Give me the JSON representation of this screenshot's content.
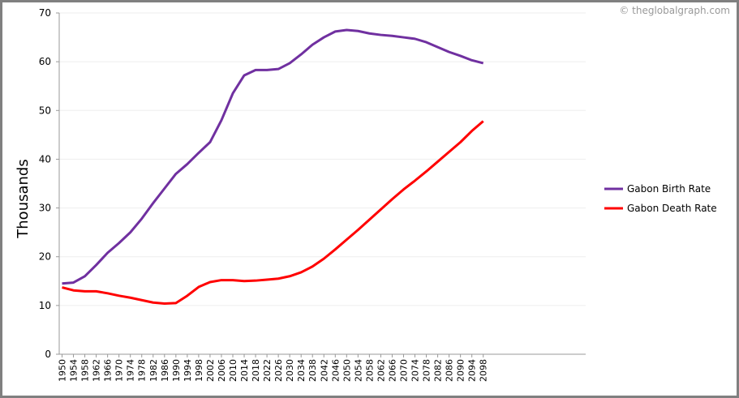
{
  "chart_data": {
    "type": "line",
    "y_label": "Thousands",
    "credit": "© theglobalgraph.com",
    "x": [
      1950,
      1954,
      1958,
      1962,
      1966,
      1970,
      1974,
      1978,
      1982,
      1986,
      1990,
      1994,
      1998,
      2002,
      2006,
      2010,
      2014,
      2018,
      2022,
      2026,
      2030,
      2034,
      2038,
      2042,
      2046,
      2050,
      2054,
      2058,
      2062,
      2066,
      2070,
      2074,
      2078,
      2082,
      2086,
      2090,
      2094,
      2098
    ],
    "series": [
      {
        "name": "Gabon Birth Rate",
        "color": "#7030a0",
        "values": [
          14.5,
          14.7,
          16,
          18.3,
          20.8,
          22.8,
          25,
          27.8,
          31,
          34,
          37,
          39,
          41.3,
          43.5,
          48,
          53.5,
          57.2,
          58.3,
          58.3,
          58.5,
          59.7,
          61.5,
          63.5,
          65,
          66.2,
          66.5,
          66.3,
          65.8,
          65.5,
          65.3,
          65,
          64.7,
          64,
          63,
          62,
          61.2,
          60.3,
          59.7
        ]
      },
      {
        "name": "Gabon Death Rate",
        "color": "#ff0000",
        "values": [
          13.7,
          13.1,
          12.9,
          12.9,
          12.5,
          12,
          11.6,
          11.1,
          10.6,
          10.4,
          10.5,
          12,
          13.8,
          14.8,
          15.2,
          15.2,
          15,
          15.1,
          15.3,
          15.5,
          16,
          16.8,
          18,
          19.6,
          21.5,
          23.5,
          25.5,
          27.6,
          29.7,
          31.8,
          33.8,
          35.6,
          37.5,
          39.5,
          41.5,
          43.5,
          45.8,
          47.8
        ]
      }
    ],
    "xlim": [
      1949,
      2134
    ],
    "xticks": [
      1950,
      1954,
      1958,
      1962,
      1966,
      1970,
      1974,
      1978,
      1982,
      1986,
      1990,
      1994,
      1998,
      2002,
      2006,
      2010,
      2014,
      2018,
      2022,
      2026,
      2030,
      2034,
      2038,
      2042,
      2046,
      2050,
      2054,
      2058,
      2062,
      2066,
      2070,
      2074,
      2078,
      2082,
      2086,
      2090,
      2094,
      2098
    ],
    "ylim": [
      0,
      70
    ],
    "yticks": [
      0,
      10,
      20,
      30,
      40,
      50,
      60,
      70
    ],
    "grid": true,
    "legend": "right"
  }
}
